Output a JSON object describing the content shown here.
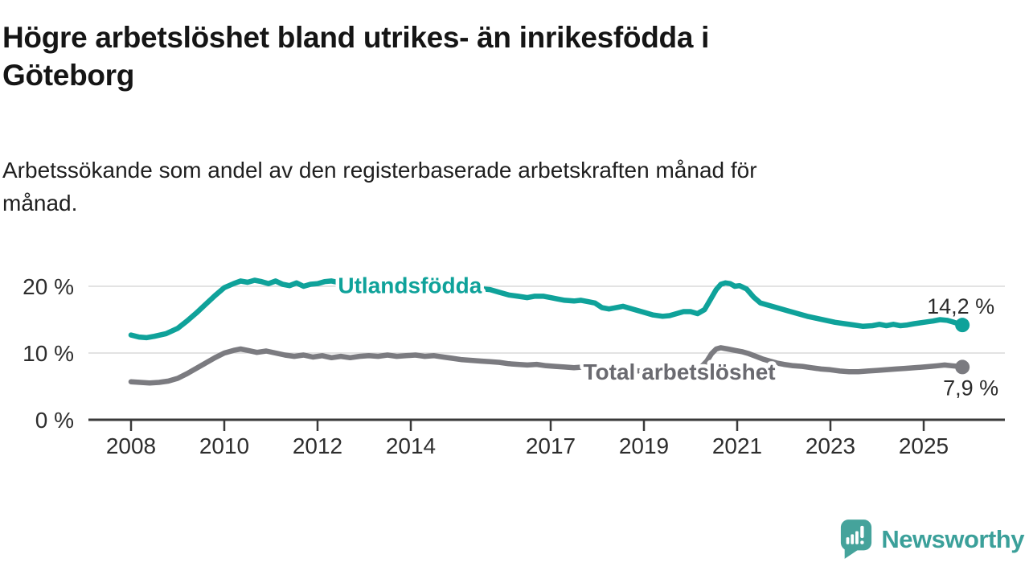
{
  "header": {
    "title": "Högre arbetslöshet bland utrikes- än inrikesfödda i\nGöteborg",
    "subtitle": "Arbetssökande som andel av den registerbaserade arbetskraften månad för\nmånad."
  },
  "brand": {
    "wordmark": "Newsworthy",
    "logo_color": "#45a39b",
    "wordmark_color": "#3ba09a",
    "icon_glyph_color": "#ffffff"
  },
  "colors": {
    "grid": "#dadada",
    "axis": "#3a3a3a",
    "tick_text": "#2d2d2d"
  },
  "chart_data": {
    "type": "line",
    "title": "Högre arbetslöshet bland utrikes- än inrikesfödda i Göteborg",
    "subtitle": "Arbetssökande som andel av den registerbaserade arbetskraften månad för månad.",
    "unit": "%",
    "x_range_years": [
      2008,
      2025.83
    ],
    "ylim": [
      0,
      24
    ],
    "grid": "horizontal-only",
    "legend_position": "inline-labels",
    "x_ticks": [
      {
        "t": 2008,
        "label": "2008"
      },
      {
        "t": 2010,
        "label": "2010"
      },
      {
        "t": 2012,
        "label": "2012"
      },
      {
        "t": 2014,
        "label": "2014"
      },
      {
        "t": 2017,
        "label": "2017"
      },
      {
        "t": 2019,
        "label": "2019"
      },
      {
        "t": 2021,
        "label": "2021"
      },
      {
        "t": 2023,
        "label": "2023"
      },
      {
        "t": 2025,
        "label": "2025"
      }
    ],
    "y_ticks": [
      {
        "value": 0,
        "label": "0 %"
      },
      {
        "value": 10,
        "label": "10 %"
      },
      {
        "value": 20,
        "label": "20 %"
      }
    ],
    "series": [
      {
        "id": "utlandsfodda",
        "name": "Utlandsfödda",
        "color": "#0fa29a",
        "end_value": 14.2,
        "end_label": "14,2 %",
        "end_label_offset": {
          "dx": 40,
          "dy": -14
        },
        "inline_label": {
          "t": 2013.98,
          "v": 19.0
        },
        "points": [
          [
            2008.0,
            12.7
          ],
          [
            2008.17,
            12.4
          ],
          [
            2008.33,
            12.3
          ],
          [
            2008.5,
            12.5
          ],
          [
            2008.75,
            12.9
          ],
          [
            2009.0,
            13.7
          ],
          [
            2009.2,
            14.8
          ],
          [
            2009.4,
            16.0
          ],
          [
            2009.6,
            17.3
          ],
          [
            2009.8,
            18.6
          ],
          [
            2010.0,
            19.8
          ],
          [
            2010.2,
            20.4
          ],
          [
            2010.35,
            20.8
          ],
          [
            2010.5,
            20.6
          ],
          [
            2010.65,
            20.9
          ],
          [
            2010.8,
            20.7
          ],
          [
            2010.95,
            20.4
          ],
          [
            2011.1,
            20.8
          ],
          [
            2011.25,
            20.3
          ],
          [
            2011.4,
            20.1
          ],
          [
            2011.55,
            20.5
          ],
          [
            2011.7,
            20.0
          ],
          [
            2011.85,
            20.3
          ],
          [
            2012.0,
            20.4
          ],
          [
            2012.15,
            20.7
          ],
          [
            2012.3,
            20.8
          ],
          [
            2012.5,
            20.5
          ],
          [
            2012.75,
            20.6
          ],
          [
            2013.0,
            20.4
          ],
          [
            2013.3,
            20.5
          ],
          [
            2013.6,
            20.3
          ],
          [
            2013.9,
            20.4
          ],
          [
            2014.2,
            20.3
          ],
          [
            2014.5,
            20.2
          ],
          [
            2014.8,
            20.0
          ],
          [
            2015.1,
            19.9
          ],
          [
            2015.4,
            19.7
          ],
          [
            2015.7,
            19.5
          ],
          [
            2015.9,
            19.1
          ],
          [
            2016.1,
            18.7
          ],
          [
            2016.3,
            18.5
          ],
          [
            2016.5,
            18.3
          ],
          [
            2016.65,
            18.5
          ],
          [
            2016.85,
            18.5
          ],
          [
            2017.0,
            18.3
          ],
          [
            2017.15,
            18.1
          ],
          [
            2017.3,
            17.9
          ],
          [
            2017.5,
            17.8
          ],
          [
            2017.65,
            17.9
          ],
          [
            2017.8,
            17.7
          ],
          [
            2017.95,
            17.5
          ],
          [
            2018.1,
            16.8
          ],
          [
            2018.25,
            16.6
          ],
          [
            2018.4,
            16.8
          ],
          [
            2018.55,
            17.0
          ],
          [
            2018.7,
            16.7
          ],
          [
            2018.85,
            16.4
          ],
          [
            2019.0,
            16.1
          ],
          [
            2019.2,
            15.7
          ],
          [
            2019.4,
            15.5
          ],
          [
            2019.55,
            15.6
          ],
          [
            2019.7,
            15.9
          ],
          [
            2019.85,
            16.2
          ],
          [
            2020.0,
            16.2
          ],
          [
            2020.15,
            15.9
          ],
          [
            2020.3,
            16.5
          ],
          [
            2020.45,
            18.3
          ],
          [
            2020.55,
            19.5
          ],
          [
            2020.65,
            20.3
          ],
          [
            2020.75,
            20.5
          ],
          [
            2020.85,
            20.4
          ],
          [
            2020.95,
            20.0
          ],
          [
            2021.05,
            20.1
          ],
          [
            2021.2,
            19.6
          ],
          [
            2021.35,
            18.4
          ],
          [
            2021.5,
            17.5
          ],
          [
            2021.65,
            17.2
          ],
          [
            2021.8,
            16.9
          ],
          [
            2021.95,
            16.6
          ],
          [
            2022.1,
            16.3
          ],
          [
            2022.3,
            15.9
          ],
          [
            2022.5,
            15.5
          ],
          [
            2022.7,
            15.2
          ],
          [
            2022.9,
            14.9
          ],
          [
            2023.1,
            14.6
          ],
          [
            2023.3,
            14.4
          ],
          [
            2023.5,
            14.2
          ],
          [
            2023.7,
            14.0
          ],
          [
            2023.9,
            14.1
          ],
          [
            2024.05,
            14.3
          ],
          [
            2024.2,
            14.1
          ],
          [
            2024.35,
            14.3
          ],
          [
            2024.5,
            14.1
          ],
          [
            2024.65,
            14.2
          ],
          [
            2024.8,
            14.4
          ],
          [
            2025.0,
            14.6
          ],
          [
            2025.2,
            14.8
          ],
          [
            2025.35,
            15.0
          ],
          [
            2025.5,
            14.9
          ],
          [
            2025.65,
            14.6
          ],
          [
            2025.83,
            14.2
          ]
        ]
      },
      {
        "id": "total-arbetsloshet",
        "name": "Total arbetslöshet",
        "color": "#7b7b80",
        "label_color": "#6a6a70",
        "end_value": 7.9,
        "end_label": "7,9 %",
        "end_label_offset": {
          "dx": 45,
          "dy": 35
        },
        "inline_label": {
          "t": 2019.76,
          "v": 6.0
        },
        "points": [
          [
            2008.0,
            5.7
          ],
          [
            2008.2,
            5.6
          ],
          [
            2008.4,
            5.5
          ],
          [
            2008.6,
            5.6
          ],
          [
            2008.8,
            5.8
          ],
          [
            2009.0,
            6.2
          ],
          [
            2009.2,
            6.9
          ],
          [
            2009.4,
            7.7
          ],
          [
            2009.6,
            8.5
          ],
          [
            2009.8,
            9.3
          ],
          [
            2010.0,
            10.0
          ],
          [
            2010.2,
            10.4
          ],
          [
            2010.35,
            10.6
          ],
          [
            2010.5,
            10.4
          ],
          [
            2010.7,
            10.1
          ],
          [
            2010.9,
            10.3
          ],
          [
            2011.1,
            10.0
          ],
          [
            2011.3,
            9.7
          ],
          [
            2011.5,
            9.5
          ],
          [
            2011.7,
            9.7
          ],
          [
            2011.9,
            9.4
          ],
          [
            2012.1,
            9.6
          ],
          [
            2012.3,
            9.3
          ],
          [
            2012.5,
            9.5
          ],
          [
            2012.7,
            9.3
          ],
          [
            2012.9,
            9.5
          ],
          [
            2013.1,
            9.6
          ],
          [
            2013.3,
            9.5
          ],
          [
            2013.5,
            9.7
          ],
          [
            2013.7,
            9.5
          ],
          [
            2013.9,
            9.6
          ],
          [
            2014.1,
            9.7
          ],
          [
            2014.3,
            9.5
          ],
          [
            2014.5,
            9.6
          ],
          [
            2014.7,
            9.4
          ],
          [
            2014.9,
            9.2
          ],
          [
            2015.1,
            9.0
          ],
          [
            2015.3,
            8.9
          ],
          [
            2015.5,
            8.8
          ],
          [
            2015.7,
            8.7
          ],
          [
            2015.9,
            8.6
          ],
          [
            2016.1,
            8.4
          ],
          [
            2016.3,
            8.3
          ],
          [
            2016.5,
            8.2
          ],
          [
            2016.7,
            8.3
          ],
          [
            2016.9,
            8.1
          ],
          [
            2017.1,
            8.0
          ],
          [
            2017.3,
            7.9
          ],
          [
            2017.5,
            7.8
          ],
          [
            2017.7,
            7.9
          ],
          [
            2017.9,
            7.7
          ],
          [
            2018.1,
            7.6
          ],
          [
            2018.3,
            7.5
          ],
          [
            2018.5,
            7.4
          ],
          [
            2018.7,
            7.5
          ],
          [
            2018.9,
            7.3
          ],
          [
            2019.1,
            7.2
          ],
          [
            2019.3,
            7.1
          ],
          [
            2019.5,
            7.2
          ],
          [
            2019.7,
            7.1
          ],
          [
            2019.9,
            7.2
          ],
          [
            2020.05,
            7.4
          ],
          [
            2020.2,
            7.7
          ],
          [
            2020.35,
            8.8
          ],
          [
            2020.45,
            9.9
          ],
          [
            2020.55,
            10.6
          ],
          [
            2020.65,
            10.8
          ],
          [
            2020.8,
            10.6
          ],
          [
            2020.95,
            10.4
          ],
          [
            2021.1,
            10.2
          ],
          [
            2021.25,
            9.9
          ],
          [
            2021.4,
            9.5
          ],
          [
            2021.55,
            9.1
          ],
          [
            2021.7,
            8.8
          ],
          [
            2021.85,
            8.5
          ],
          [
            2022.0,
            8.3
          ],
          [
            2022.2,
            8.1
          ],
          [
            2022.4,
            8.0
          ],
          [
            2022.6,
            7.8
          ],
          [
            2022.8,
            7.6
          ],
          [
            2023.0,
            7.5
          ],
          [
            2023.2,
            7.3
          ],
          [
            2023.4,
            7.2
          ],
          [
            2023.6,
            7.2
          ],
          [
            2023.8,
            7.3
          ],
          [
            2024.0,
            7.4
          ],
          [
            2024.2,
            7.5
          ],
          [
            2024.4,
            7.6
          ],
          [
            2024.6,
            7.7
          ],
          [
            2024.8,
            7.8
          ],
          [
            2025.0,
            7.9
          ],
          [
            2025.15,
            8.0
          ],
          [
            2025.3,
            8.1
          ],
          [
            2025.45,
            8.2
          ],
          [
            2025.6,
            8.1
          ],
          [
            2025.75,
            8.0
          ],
          [
            2025.83,
            7.9
          ]
        ]
      }
    ]
  }
}
